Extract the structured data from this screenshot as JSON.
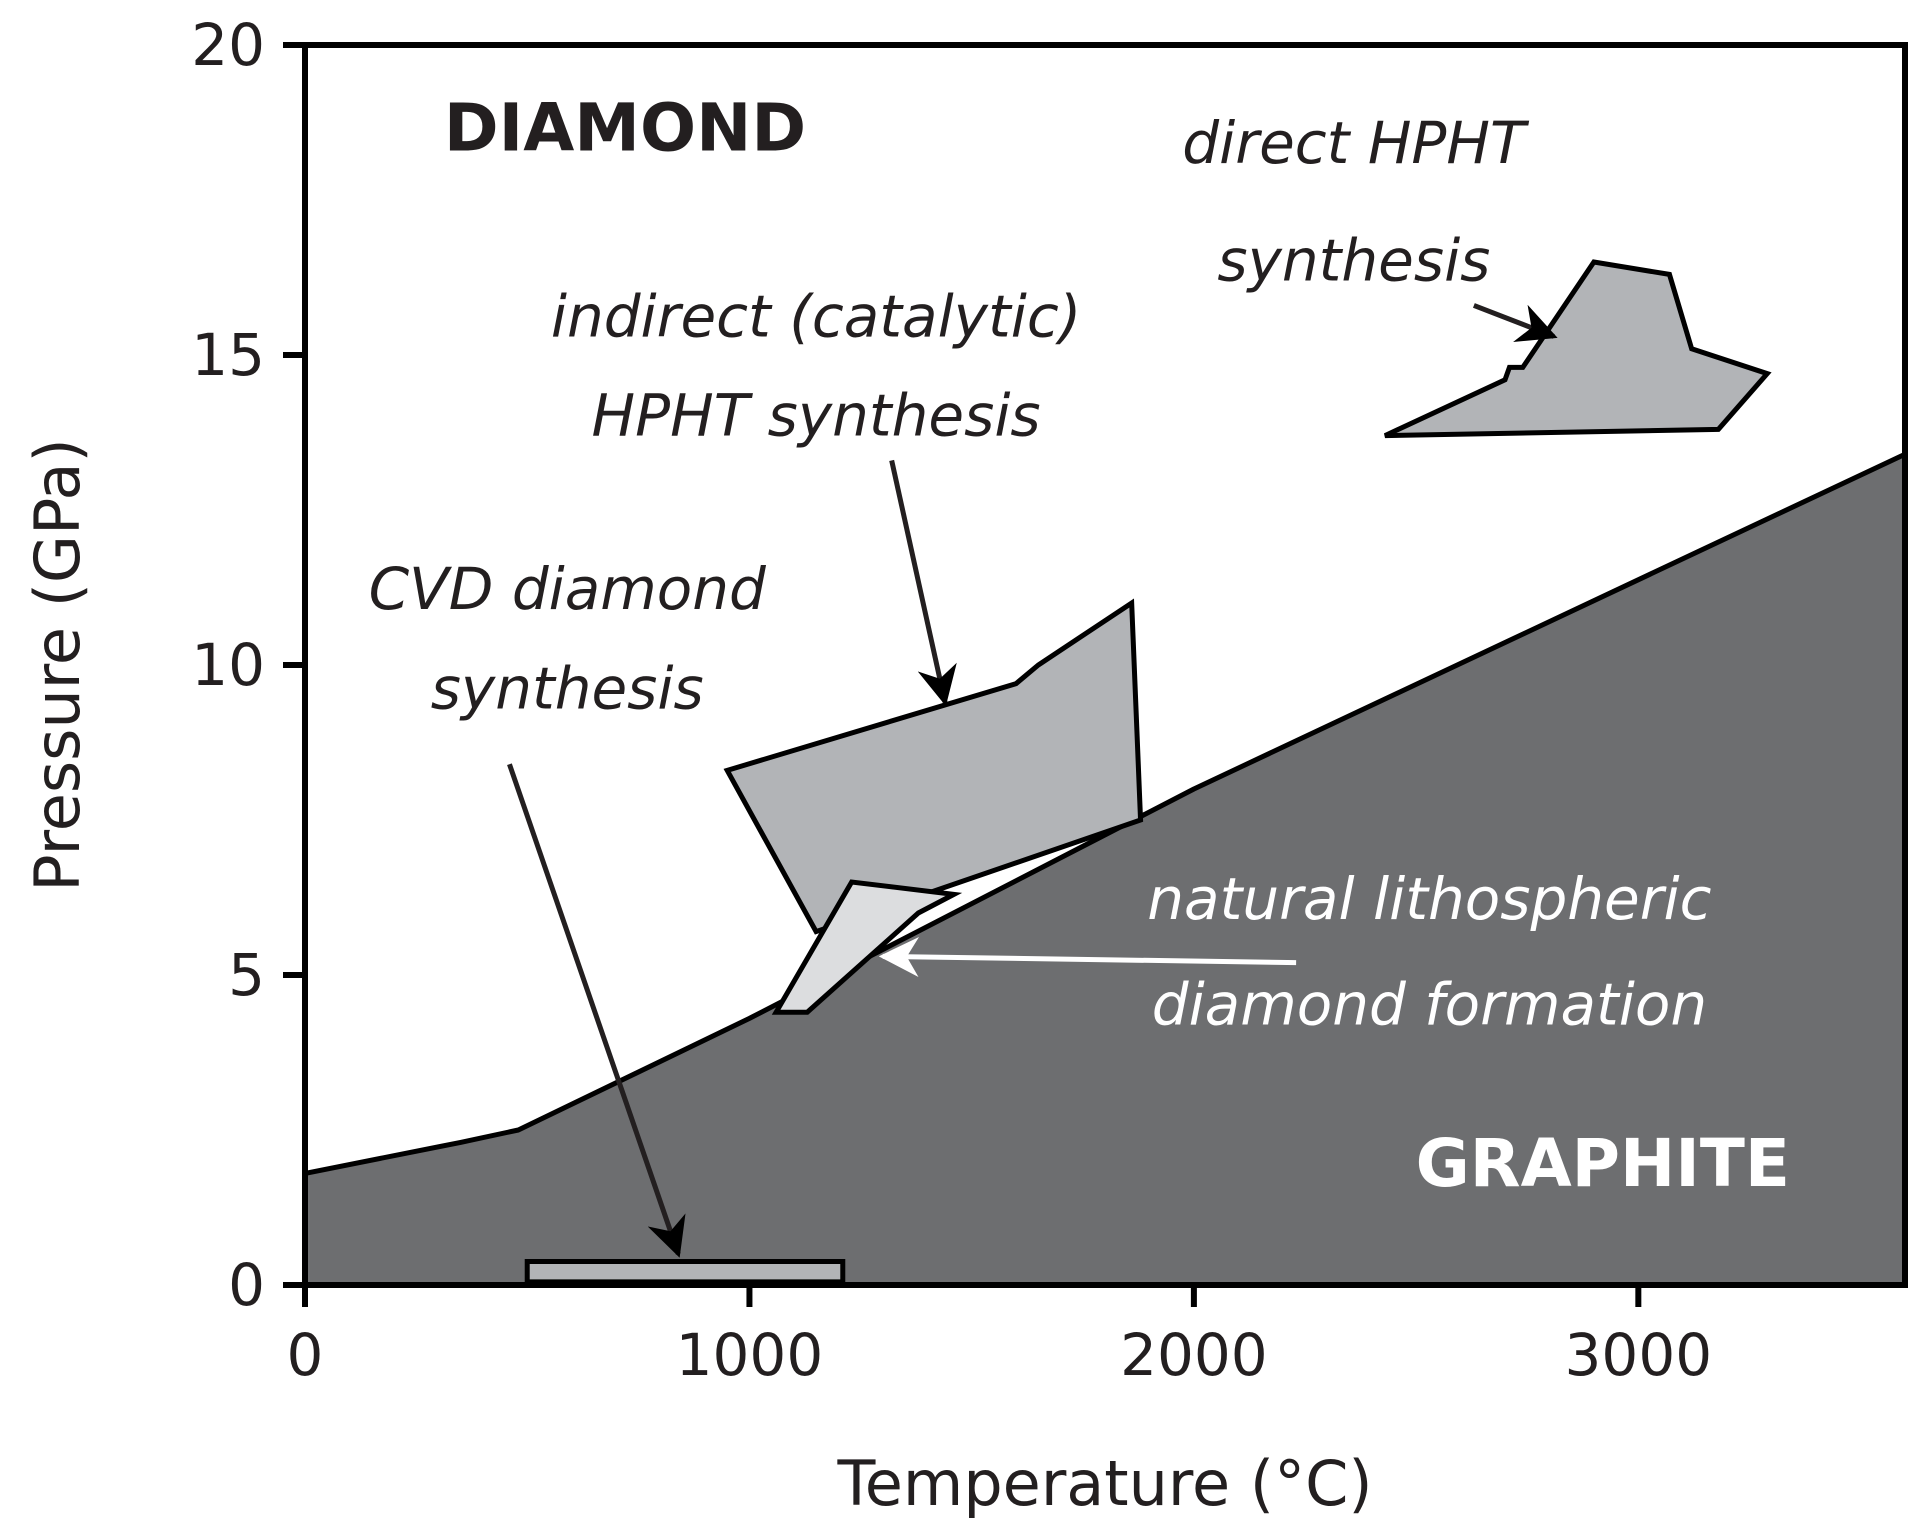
{
  "chart_data": {
    "type": "area",
    "title": "",
    "xlabel": "Temperature (°C)",
    "ylabel": "Pressure (GPa)",
    "xlim": [
      0,
      3600
    ],
    "ylim": [
      0,
      20
    ],
    "x_ticks": [
      0,
      1000,
      2000,
      3000
    ],
    "y_ticks": [
      0,
      5,
      10,
      15,
      20
    ],
    "grid": false,
    "legend": "none",
    "colors": {
      "graphite_field": "#6d6e70",
      "synthesis_region": "#b2b4b7",
      "natural_region": "#dcdddf",
      "outline": "#000000",
      "white_text": "#ffffff",
      "dark_text": "#231f20"
    },
    "phase_boundary": {
      "x": [
        0,
        350,
        480,
        1000,
        2000,
        3600
      ],
      "y": [
        1.8,
        2.3,
        2.5,
        4.3,
        8.0,
        13.4
      ]
    },
    "phase_labels": [
      {
        "text": "DIAMOND",
        "x": 720,
        "y": 18.3,
        "color": "#231f20"
      },
      {
        "text": "GRAPHITE",
        "x": 2920,
        "y": 1.6,
        "color": "#ffffff"
      }
    ],
    "regions": [
      {
        "id": "direct-hpht",
        "fill": "#b2b4b7",
        "points": [
          [
            2430,
            13.7
          ],
          [
            2700,
            14.6
          ],
          [
            2710,
            14.8
          ],
          [
            2740,
            14.8
          ],
          [
            2900,
            16.5
          ],
          [
            3070,
            16.3
          ],
          [
            3120,
            15.1
          ],
          [
            3290,
            14.7
          ],
          [
            3180,
            13.8
          ]
        ]
      },
      {
        "id": "indirect-catalytic-hpht",
        "fill": "#b2b4b7",
        "points": [
          [
            950,
            8.3
          ],
          [
            1600,
            9.7
          ],
          [
            1650,
            10.0
          ],
          [
            1860,
            11.0
          ],
          [
            1880,
            7.5
          ],
          [
            1150,
            5.7
          ]
        ]
      },
      {
        "id": "natural-lithospheric",
        "fill": "#dcdddf",
        "points": [
          [
            1060,
            4.4
          ],
          [
            1230,
            6.5
          ],
          [
            1460,
            6.3
          ],
          [
            1380,
            6.0
          ],
          [
            1130,
            4.4
          ]
        ]
      },
      {
        "id": "cvd",
        "fill": "#b2b4b7",
        "points": [
          [
            500,
            0.05
          ],
          [
            500,
            0.38
          ],
          [
            1210,
            0.38
          ],
          [
            1210,
            0.05
          ]
        ]
      }
    ],
    "annotations": [
      {
        "lines": [
          "direct HPHT",
          "synthesis"
        ],
        "color": "#231f20",
        "text_x": 2360,
        "text_y": [
          18.1,
          16.2
        ],
        "arrow_from": [
          2630,
          15.8
        ],
        "arrow_to": [
          2810,
          15.3
        ]
      },
      {
        "lines": [
          "indirect (catalytic)",
          "HPHT synthesis"
        ],
        "color": "#231f20",
        "text_x": 1150,
        "text_y": [
          15.3,
          13.7
        ],
        "arrow_from": [
          1320,
          13.3
        ],
        "arrow_to": [
          1440,
          9.4
        ]
      },
      {
        "lines": [
          "CVD diamond",
          "synthesis"
        ],
        "color": "#231f20",
        "text_x": 590,
        "text_y": [
          10.9,
          9.3
        ],
        "arrow_from": [
          460,
          8.4
        ],
        "arrow_to": [
          840,
          0.5
        ]
      },
      {
        "lines": [
          "natural lithospheric",
          "diamond formation"
        ],
        "color": "#ffffff",
        "text_x": 2530,
        "text_y": [
          5.9,
          4.2
        ],
        "arrow_from": [
          2230,
          5.2
        ],
        "arrow_to": [
          1300,
          5.3
        ]
      }
    ]
  }
}
